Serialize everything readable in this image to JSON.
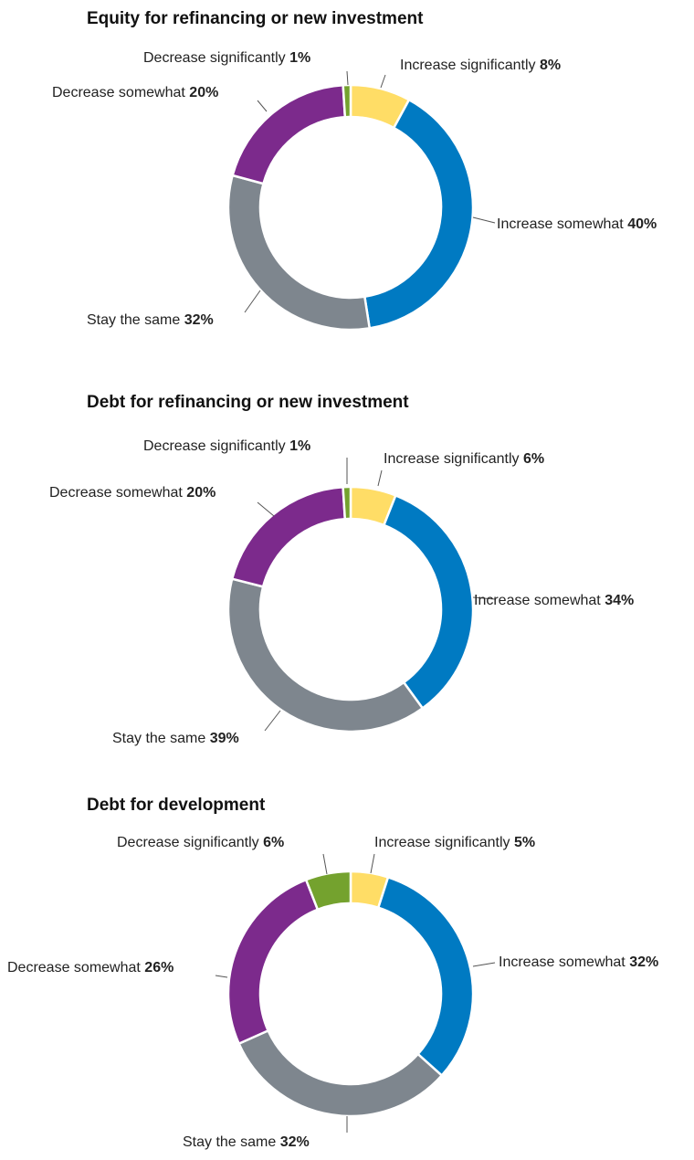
{
  "chart_data": [
    {
      "type": "pie",
      "style": "donut",
      "title": "Equity for refinancing or new investment",
      "slices": [
        {
          "label": "Increase significantly",
          "value": 8,
          "display": "8%",
          "color": "#FFDD66"
        },
        {
          "label": "Increase somewhat",
          "value": 40,
          "display": "40%",
          "color": "#007AC2"
        },
        {
          "label": "Stay the same",
          "value": 32,
          "display": "32%",
          "color": "#7E868E"
        },
        {
          "label": "Decrease somewhat",
          "value": 20,
          "display": "20%",
          "color": "#7C2A8C"
        },
        {
          "label": "Decrease significantly",
          "value": 1,
          "display": "1%",
          "color": "#74A22E"
        }
      ]
    },
    {
      "type": "pie",
      "style": "donut",
      "title": "Debt for refinancing or new investment",
      "slices": [
        {
          "label": "Increase significantly",
          "value": 6,
          "display": "6%",
          "color": "#FFDD66"
        },
        {
          "label": "Increase somewhat",
          "value": 34,
          "display": "34%",
          "color": "#007AC2"
        },
        {
          "label": "Stay the same",
          "value": 39,
          "display": "39%",
          "color": "#7E868E"
        },
        {
          "label": "Decrease somewhat",
          "value": 20,
          "display": "20%",
          "color": "#7C2A8C"
        },
        {
          "label": "Decrease significantly",
          "value": 1,
          "display": "1%",
          "color": "#74A22E"
        }
      ]
    },
    {
      "type": "pie",
      "style": "donut",
      "title": "Debt for development",
      "slices": [
        {
          "label": "Increase significantly",
          "value": 5,
          "display": "5%",
          "color": "#FFDD66"
        },
        {
          "label": "Increase somewhat",
          "value": 32,
          "display": "32%",
          "color": "#007AC2"
        },
        {
          "label": "Stay the same",
          "value": 32,
          "display": "32%",
          "color": "#7E868E"
        },
        {
          "label": "Decrease somewhat",
          "value": 26,
          "display": "26%",
          "color": "#7C2A8C"
        },
        {
          "label": "Decrease significantly",
          "value": 6,
          "display": "6%",
          "color": "#74A22E"
        }
      ]
    }
  ]
}
